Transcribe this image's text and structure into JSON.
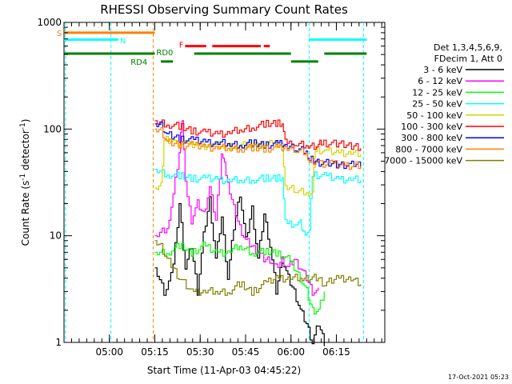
{
  "chart_data": {
    "type": "line",
    "title": "RHESSI Observing Summary Count Rates",
    "xlabel": "Start Time (11-Apr-03 04:45:22)",
    "ylabel_main": "Count Rate (s",
    "ylabel_sup1": "-1",
    "ylabel_mid": " detector",
    "ylabel_sup2": "-1",
    "ylabel_end": ")",
    "y_scale": "log",
    "ylim": [
      1,
      1000
    ],
    "xlim_minutes": [
      0,
      106
    ],
    "y_ticks": [
      {
        "value": 1000,
        "label": "1000"
      },
      {
        "value": 100,
        "label": "100"
      },
      {
        "value": 10,
        "label": "10"
      },
      {
        "value": 1,
        "label": "1"
      }
    ],
    "x_ticks": [
      {
        "minute": 15,
        "label": "05:00"
      },
      {
        "minute": 30,
        "label": "05:15"
      },
      {
        "minute": 45,
        "label": "05:30"
      },
      {
        "minute": 60,
        "label": "05:45"
      },
      {
        "minute": 75,
        "label": "06:00"
      },
      {
        "minute": 90,
        "label": "06:15"
      }
    ],
    "legend_header": [
      "Det 1,3,4,5,6,9,",
      "FDecim 1, Att 0"
    ],
    "legend_position": "right",
    "grid": false,
    "series": [
      {
        "name": "3 - 6 keV",
        "color": "#000000",
        "points": [
          [
            30,
            5
          ],
          [
            33,
            3
          ],
          [
            36,
            5
          ],
          [
            38,
            20
          ],
          [
            40,
            5
          ],
          [
            42,
            8
          ],
          [
            44,
            3
          ],
          [
            46,
            10
          ],
          [
            48,
            22
          ],
          [
            50,
            6
          ],
          [
            52,
            15
          ],
          [
            54,
            4
          ],
          [
            56,
            12
          ],
          [
            58,
            25
          ],
          [
            60,
            9
          ],
          [
            62,
            18
          ],
          [
            64,
            6
          ],
          [
            66,
            16
          ],
          [
            68,
            8
          ],
          [
            70,
            3
          ],
          [
            72,
            6
          ],
          [
            74,
            4
          ],
          [
            76,
            3
          ],
          [
            78,
            2
          ],
          [
            80,
            1.5
          ],
          [
            82,
            1
          ],
          [
            84,
            1.5
          ],
          [
            86,
            1
          ]
        ]
      },
      {
        "name": "6 - 12 keV",
        "color": "#ff00ff",
        "points": [
          [
            30,
            10
          ],
          [
            34,
            12
          ],
          [
            36,
            24
          ],
          [
            38,
            60
          ],
          [
            39,
            130
          ],
          [
            40,
            30
          ],
          [
            42,
            14
          ],
          [
            44,
            20
          ],
          [
            46,
            16
          ],
          [
            48,
            28
          ],
          [
            50,
            14
          ],
          [
            52,
            60
          ],
          [
            53,
            45
          ],
          [
            54,
            30
          ],
          [
            56,
            18
          ],
          [
            58,
            12
          ],
          [
            60,
            9
          ],
          [
            62,
            8
          ],
          [
            64,
            7
          ],
          [
            66,
            6
          ],
          [
            68,
            6
          ],
          [
            70,
            5
          ],
          [
            72,
            6
          ],
          [
            74,
            5
          ],
          [
            76,
            6
          ],
          [
            78,
            5
          ],
          [
            80,
            4
          ],
          [
            82,
            3
          ],
          [
            84,
            3
          ]
        ]
      },
      {
        "name": "12 - 25 keV",
        "color": "#00ff00",
        "points": [
          [
            30,
            7
          ],
          [
            34,
            7
          ],
          [
            38,
            8
          ],
          [
            42,
            7
          ],
          [
            46,
            8
          ],
          [
            50,
            7
          ],
          [
            54,
            7
          ],
          [
            58,
            8
          ],
          [
            62,
            7
          ],
          [
            66,
            7
          ],
          [
            70,
            7
          ],
          [
            74,
            6
          ],
          [
            76,
            5
          ],
          [
            78,
            4
          ],
          [
            80,
            3
          ],
          [
            82,
            2
          ],
          [
            84,
            2
          ],
          [
            86,
            3
          ]
        ]
      },
      {
        "name": "25 - 50 keV",
        "color": "#00ffff",
        "points": [
          [
            30,
            42
          ],
          [
            34,
            38
          ],
          [
            38,
            36
          ],
          [
            42,
            35
          ],
          [
            46,
            34
          ],
          [
            50,
            34
          ],
          [
            54,
            33
          ],
          [
            58,
            33
          ],
          [
            62,
            34
          ],
          [
            66,
            34
          ],
          [
            70,
            35
          ],
          [
            72,
            36
          ],
          [
            73,
            13
          ],
          [
            76,
            13
          ],
          [
            78,
            13
          ],
          [
            79,
            11
          ],
          [
            81,
            11
          ],
          [
            82,
            38
          ],
          [
            86,
            36
          ],
          [
            90,
            34
          ],
          [
            94,
            34
          ],
          [
            98,
            33
          ]
        ]
      },
      {
        "name": "50 - 100 keV",
        "color": "#d4d400",
        "points": [
          [
            30,
            28
          ],
          [
            32,
            30
          ],
          [
            33,
            80
          ],
          [
            36,
            75
          ],
          [
            40,
            72
          ],
          [
            44,
            70
          ],
          [
            48,
            70
          ],
          [
            52,
            70
          ],
          [
            56,
            70
          ],
          [
            60,
            70
          ],
          [
            64,
            72
          ],
          [
            68,
            72
          ],
          [
            72,
            70
          ],
          [
            73,
            28
          ],
          [
            76,
            27
          ],
          [
            80,
            26
          ],
          [
            82,
            25
          ],
          [
            83,
            65
          ],
          [
            86,
            62
          ],
          [
            90,
            60
          ],
          [
            94,
            60
          ],
          [
            98,
            58
          ]
        ]
      },
      {
        "name": "100 - 300 keV",
        "color": "#ff0000",
        "points": [
          [
            30,
            120
          ],
          [
            34,
            112
          ],
          [
            38,
            105
          ],
          [
            42,
            98
          ],
          [
            46,
            92
          ],
          [
            50,
            90
          ],
          [
            54,
            92
          ],
          [
            58,
            98
          ],
          [
            62,
            105
          ],
          [
            66,
            110
          ],
          [
            70,
            115
          ],
          [
            72,
            115
          ],
          [
            73,
            74
          ],
          [
            76,
            72
          ],
          [
            80,
            70
          ],
          [
            82,
            70
          ],
          [
            84,
            70
          ],
          [
            85,
            75
          ],
          [
            90,
            72
          ],
          [
            95,
            70
          ],
          [
            98,
            68
          ]
        ]
      },
      {
        "name": "300 - 800 keV",
        "color": "#0000ff",
        "points": [
          [
            30,
            112
          ],
          [
            32,
            110
          ],
          [
            34,
            88
          ],
          [
            38,
            82
          ],
          [
            42,
            78
          ],
          [
            46,
            76
          ],
          [
            50,
            74
          ],
          [
            54,
            73
          ],
          [
            58,
            72
          ],
          [
            62,
            73
          ],
          [
            66,
            72
          ],
          [
            70,
            72
          ],
          [
            72,
            72
          ],
          [
            73,
            68
          ],
          [
            76,
            66
          ],
          [
            80,
            64
          ],
          [
            81,
            52
          ],
          [
            83,
            50
          ],
          [
            85,
            48
          ],
          [
            90,
            47
          ],
          [
            95,
            46
          ],
          [
            98,
            45
          ]
        ]
      },
      {
        "name": "800 - 7000 keV",
        "color": "#ff8000",
        "points": [
          [
            30,
            100
          ],
          [
            32,
            98
          ],
          [
            34,
            75
          ],
          [
            38,
            72
          ],
          [
            42,
            70
          ],
          [
            46,
            68
          ],
          [
            50,
            67
          ],
          [
            54,
            66
          ],
          [
            58,
            66
          ],
          [
            62,
            66
          ],
          [
            66,
            66
          ],
          [
            70,
            66
          ],
          [
            72,
            66
          ],
          [
            73,
            65
          ],
          [
            76,
            64
          ],
          [
            80,
            62
          ],
          [
            81,
            50
          ],
          [
            84,
            48
          ],
          [
            88,
            47
          ],
          [
            92,
            46
          ],
          [
            98,
            45
          ]
        ]
      },
      {
        "name": "7000 - 15000 keV",
        "color": "#808000",
        "points": [
          [
            30,
            9
          ],
          [
            32,
            8
          ],
          [
            34,
            6
          ],
          [
            36,
            5
          ],
          [
            38,
            4
          ],
          [
            42,
            3
          ],
          [
            46,
            3
          ],
          [
            50,
            3
          ],
          [
            54,
            3
          ],
          [
            58,
            3.5
          ],
          [
            62,
            3
          ],
          [
            66,
            3.5
          ],
          [
            70,
            4
          ],
          [
            74,
            4
          ],
          [
            78,
            4
          ],
          [
            80,
            4
          ],
          [
            82,
            4
          ],
          [
            84,
            4
          ],
          [
            86,
            3.5
          ],
          [
            90,
            4
          ],
          [
            94,
            4
          ],
          [
            98,
            3.5
          ]
        ]
      }
    ],
    "flag_labels": [
      {
        "label": "S",
        "color": "#ff8000"
      },
      {
        "label": "N",
        "color": "#00ffff"
      },
      {
        "label": "F",
        "color": "#ff0000"
      },
      {
        "label": "RD0",
        "color": "#008000"
      },
      {
        "label": "RD4",
        "color": "#008000"
      }
    ],
    "flag_bars": [
      {
        "flag": "S",
        "color": "#ff8000",
        "y": 800,
        "start": 0,
        "end": 30
      },
      {
        "flag": "N",
        "color": "#00ffff",
        "y": 690,
        "start": 0,
        "end": 18
      },
      {
        "flag": "N",
        "color": "#00ffff",
        "y": 690,
        "start": 81,
        "end": 100
      },
      {
        "flag": "F",
        "color": "#ff0000",
        "y": 600,
        "start": 40,
        "end": 47
      },
      {
        "flag": "F",
        "color": "#ff0000",
        "y": 600,
        "start": 49,
        "end": 65
      },
      {
        "flag": "F",
        "color": "#ff0000",
        "y": 600,
        "start": 66,
        "end": 68
      },
      {
        "flag": "RD0",
        "color": "#008000",
        "y": 510,
        "start": 0,
        "end": 30
      },
      {
        "flag": "RD0",
        "color": "#008000",
        "y": 510,
        "start": 43,
        "end": 75
      },
      {
        "flag": "RD0",
        "color": "#008000",
        "y": 510,
        "start": 86,
        "end": 100
      },
      {
        "flag": "RD4",
        "color": "#008000",
        "y": 430,
        "start": 32,
        "end": 36
      },
      {
        "flag": "RD4",
        "color": "#008000",
        "y": 430,
        "start": 75,
        "end": 84
      }
    ],
    "vertical_lines": [
      {
        "minute": 0.5,
        "color": "#00ffff"
      },
      {
        "minute": 15.5,
        "color": "#00ffff"
      },
      {
        "minute": 29.5,
        "color": "#ff8000"
      },
      {
        "minute": 81,
        "color": "#00ffff"
      },
      {
        "minute": 99,
        "color": "#00ffff"
      }
    ]
  },
  "timestamp": "17-Oct-2021 05:23"
}
